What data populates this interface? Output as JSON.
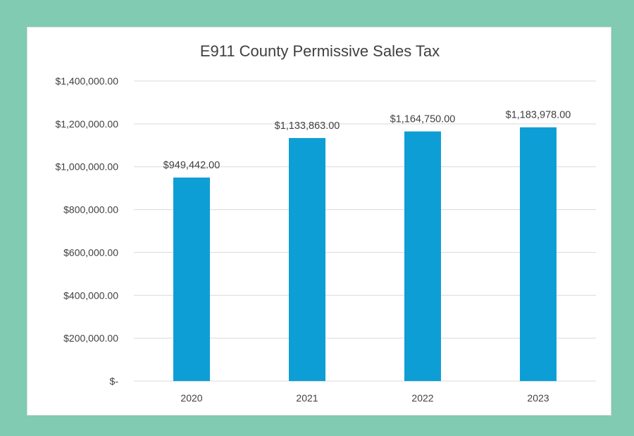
{
  "colors": {
    "background": "#80cbb1",
    "bar": "#0e9ed6",
    "gridline": "#d9d9d9",
    "text": "#404040"
  },
  "chart_data": {
    "type": "bar",
    "title": "E911 County Permissive Sales Tax",
    "xlabel": "",
    "ylabel": "",
    "categories": [
      "2020",
      "2021",
      "2022",
      "2023"
    ],
    "values": [
      949442,
      1133863,
      1164750,
      1183978
    ],
    "data_labels": [
      "$949,442.00",
      "$1,133,863.00",
      "$1,164,750.00",
      "$1,183,978.00"
    ],
    "ylim": [
      0,
      1400000
    ],
    "y_ticks": [
      0,
      200000,
      400000,
      600000,
      800000,
      1000000,
      1200000,
      1400000
    ],
    "y_tick_labels": [
      "$-",
      "$200,000.00",
      "$400,000.00",
      "$600,000.00",
      "$800,000.00",
      "$1,000,000.00",
      "$1,200,000.00",
      "$1,400,000.00"
    ],
    "grid": true,
    "legend": "none"
  }
}
